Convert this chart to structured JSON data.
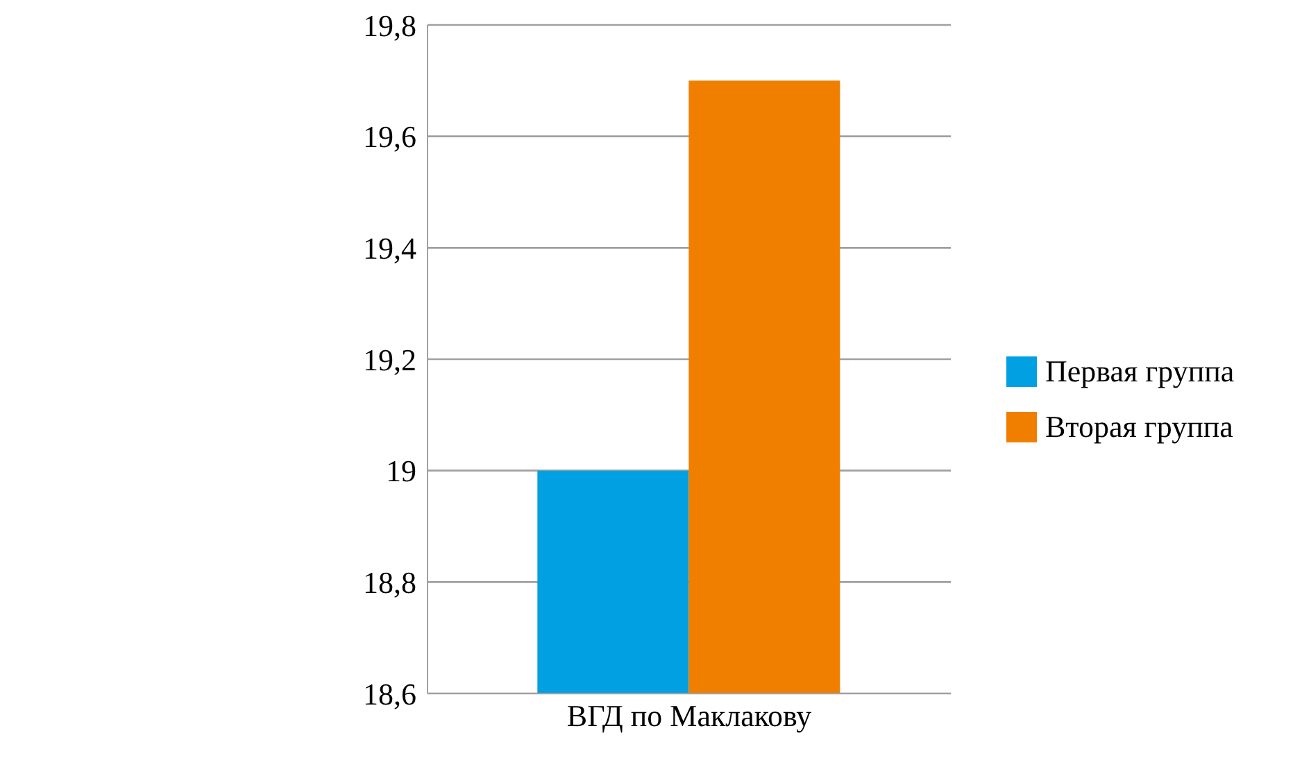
{
  "chart_data": {
    "type": "bar",
    "categories": [
      "ВГД по Маклакову"
    ],
    "series": [
      {
        "name": "Первая группа",
        "color": "#00a0e2",
        "values": [
          19.0
        ]
      },
      {
        "name": "Вторая группа",
        "color": "#f07f00",
        "values": [
          19.7
        ]
      }
    ],
    "ylim": [
      18.6,
      19.8
    ],
    "yticks": [
      {
        "value": 18.6,
        "label": "18,6"
      },
      {
        "value": 18.8,
        "label": "18,8"
      },
      19,
      {
        "value": 19.2,
        "label": "19,2"
      },
      {
        "value": 19.4,
        "label": "19,4"
      },
      {
        "value": 19.6,
        "label": "19,6"
      },
      {
        "value": 19.8,
        "label": "19,8"
      }
    ],
    "grid": "y",
    "legend": "right"
  }
}
